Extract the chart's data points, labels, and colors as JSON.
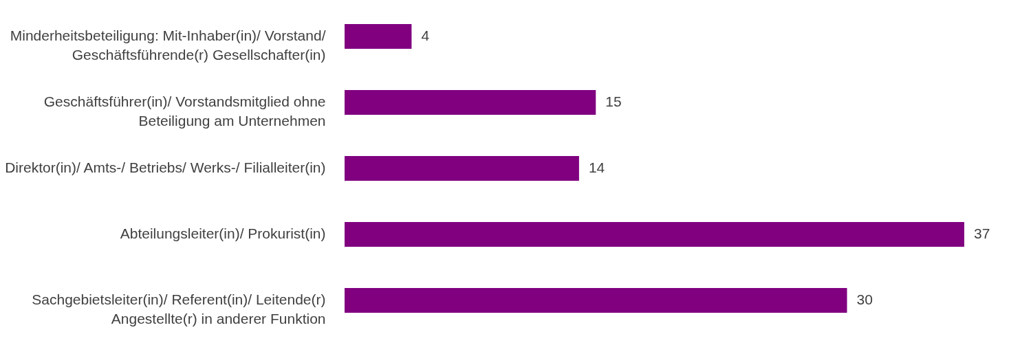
{
  "chart_data": {
    "type": "bar",
    "orientation": "horizontal",
    "categories": [
      "Minderheitsbeteiligung: Mit-Inhaber(in)/ Vorstand/\nGeschäftsführende(r) Gesellschafter(in)",
      "Geschäftsführer(in)/ Vorstandsmitglied ohne\nBeteiligung am Unternehmen",
      "Direktor(in)/ Amts-/ Betriebs/ Werks-/ Filialleiter(in)",
      "Abteilungsleiter(in)/ Prokurist(in)",
      "Sachgebietsleiter(in)/ Referent(in)/ Leitende(r)\nAngestellte(r) in anderer Funktion"
    ],
    "values": [
      4,
      15,
      14,
      37,
      30
    ],
    "color": "#800080",
    "data_labels": true
  }
}
